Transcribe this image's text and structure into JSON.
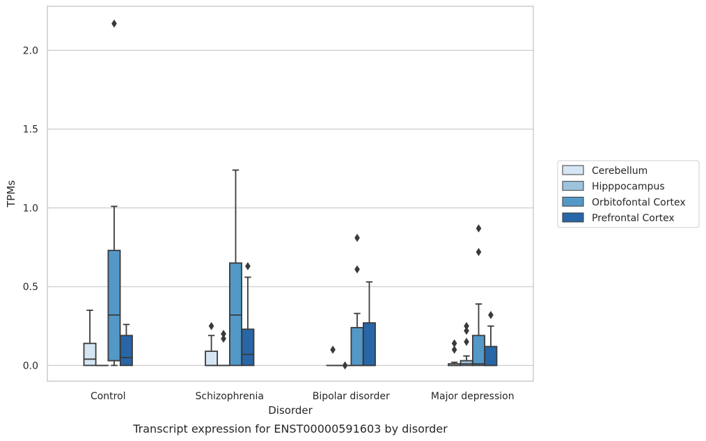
{
  "chart_data": {
    "type": "boxplot",
    "title": "",
    "caption": "Transcript expression for ENST00000591603 by disorder",
    "xlabel": "Disorder",
    "ylabel": "TPMs",
    "ylim": [
      -0.1,
      2.28
    ],
    "yticks": [
      0.0,
      0.5,
      1.0,
      1.5,
      2.0
    ],
    "ytick_labels": [
      "0.0",
      "0.5",
      "1.0",
      "1.5",
      "2.0"
    ],
    "grid": "horizontal",
    "legend_position": "right",
    "categories": [
      "Control",
      "Schizophrenia",
      "Bipolar disorder",
      "Major depression"
    ],
    "series": [
      {
        "name": "Cerebellum",
        "color": "#d6e5f3",
        "boxes": [
          {
            "q1": 0.0,
            "median": 0.04,
            "q3": 0.14,
            "whisker_low": 0.0,
            "whisker_high": 0.35,
            "outliers": []
          },
          {
            "q1": 0.0,
            "median": 0.0,
            "q3": 0.09,
            "whisker_low": 0.0,
            "whisker_high": 0.19,
            "outliers": [
              0.25
            ]
          },
          {
            "q1": 0.0,
            "median": 0.0,
            "q3": 0.0,
            "whisker_low": 0.0,
            "whisker_high": 0.0,
            "outliers": [
              0.1
            ]
          },
          {
            "q1": 0.0,
            "median": 0.0,
            "q3": 0.01,
            "whisker_low": 0.0,
            "whisker_high": 0.02,
            "outliers": [
              0.1,
              0.14
            ]
          }
        ]
      },
      {
        "name": "Hipppocampus",
        "color": "#9cc4de",
        "boxes": [
          {
            "q1": 0.0,
            "median": 0.0,
            "q3": 0.0,
            "whisker_low": 0.0,
            "whisker_high": 0.0,
            "outliers": []
          },
          {
            "q1": 0.0,
            "median": 0.0,
            "q3": 0.0,
            "whisker_low": 0.0,
            "whisker_high": 0.0,
            "outliers": [
              0.17,
              0.2
            ]
          },
          {
            "q1": 0.0,
            "median": 0.0,
            "q3": 0.0,
            "whisker_low": 0.0,
            "whisker_high": 0.0,
            "outliers": [
              0.0
            ]
          },
          {
            "q1": 0.0,
            "median": 0.01,
            "q3": 0.03,
            "whisker_low": 0.0,
            "whisker_high": 0.06,
            "outliers": [
              0.15,
              0.22,
              0.25
            ]
          }
        ]
      },
      {
        "name": "Orbitofontal Cortex",
        "color": "#5498c8",
        "boxes": [
          {
            "q1": 0.03,
            "median": 0.32,
            "q3": 0.73,
            "whisker_low": 0.0,
            "whisker_high": 1.01,
            "outliers": [
              2.17
            ]
          },
          {
            "q1": 0.0,
            "median": 0.32,
            "q3": 0.65,
            "whisker_low": 0.0,
            "whisker_high": 1.24,
            "outliers": []
          },
          {
            "q1": 0.0,
            "median": 0.0,
            "q3": 0.24,
            "whisker_low": 0.0,
            "whisker_high": 0.33,
            "outliers": [
              0.61,
              0.81
            ]
          },
          {
            "q1": 0.0,
            "median": 0.01,
            "q3": 0.19,
            "whisker_low": 0.0,
            "whisker_high": 0.39,
            "outliers": [
              0.72,
              0.87
            ]
          }
        ]
      },
      {
        "name": "Prefrontal Cortex",
        "color": "#2866a7",
        "boxes": [
          {
            "q1": 0.0,
            "median": 0.05,
            "q3": 0.19,
            "whisker_low": 0.0,
            "whisker_high": 0.26,
            "outliers": []
          },
          {
            "q1": 0.0,
            "median": 0.07,
            "q3": 0.23,
            "whisker_low": 0.0,
            "whisker_high": 0.56,
            "outliers": [
              0.63
            ]
          },
          {
            "q1": 0.0,
            "median": 0.0,
            "q3": 0.27,
            "whisker_low": 0.0,
            "whisker_high": 0.53,
            "outliers": []
          },
          {
            "q1": 0.0,
            "median": 0.0,
            "q3": 0.12,
            "whisker_low": 0.0,
            "whisker_high": 0.25,
            "outliers": [
              0.32
            ]
          }
        ]
      }
    ]
  }
}
